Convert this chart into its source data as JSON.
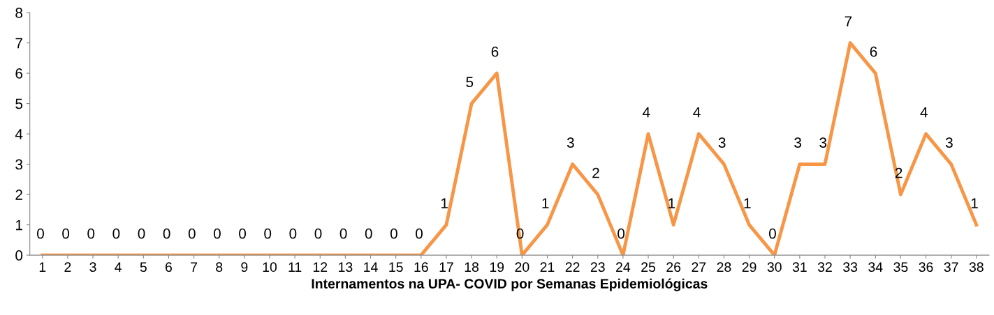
{
  "chart_data": {
    "type": "line",
    "xlabel": "Internamentos na UPA- COVID por Semanas Epidemiológicas",
    "categories": [
      "1",
      "2",
      "3",
      "4",
      "5",
      "6",
      "7",
      "8",
      "9",
      "10",
      "11",
      "12",
      "13",
      "14",
      "15",
      "16",
      "17",
      "18",
      "19",
      "20",
      "21",
      "22",
      "23",
      "24",
      "25",
      "26",
      "27",
      "28",
      "29",
      "30",
      "31",
      "32",
      "33",
      "34",
      "35",
      "36",
      "37",
      "38"
    ],
    "series": [
      {
        "color": "#f79646",
        "values": [
          0,
          0,
          0,
          0,
          0,
          0,
          0,
          0,
          0,
          0,
          0,
          0,
          0,
          0,
          0,
          0,
          1,
          5,
          6,
          0,
          1,
          3,
          2,
          0,
          4,
          1,
          4,
          3,
          1,
          0,
          3,
          3,
          7,
          6,
          2,
          4,
          3,
          1
        ]
      }
    ],
    "ylim": [
      0,
      8
    ],
    "yticks": [
      0,
      1,
      2,
      3,
      4,
      5,
      6,
      7,
      8
    ],
    "grid": false,
    "marker": "none",
    "line_style": "solid",
    "data_labels": true
  }
}
